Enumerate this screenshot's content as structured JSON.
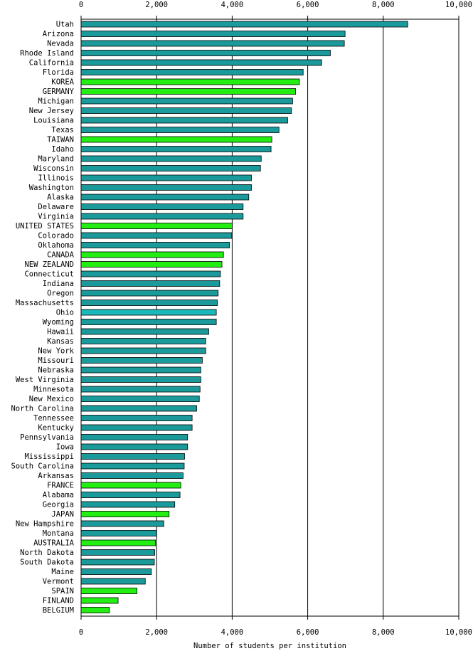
{
  "chart_data": {
    "type": "bar",
    "orientation": "horizontal",
    "xlabel": "Number of students per institution",
    "xlim": [
      0,
      10000
    ],
    "xticks": [
      0,
      2000,
      4000,
      6000,
      8000,
      10000
    ],
    "xtick_labels": [
      "0",
      "2,000",
      "4,000",
      "6,000",
      "8,000",
      "10,000"
    ],
    "grid": "vertical",
    "colors": {
      "us_state": "#1a9a9a",
      "country": "#22ee11",
      "highlight": "#1ab8b8"
    },
    "categories": [
      "Utah",
      "Arizona",
      "Nevada",
      "Rhode Island",
      "California",
      "Florida",
      "KOREA",
      "GERMANY",
      "Michigan",
      "New Jersey",
      "Louisiana",
      "Texas",
      "TAIWAN",
      "Idaho",
      "Maryland",
      "Wisconsin",
      "Illinois",
      "Washington",
      "Alaska",
      "Delaware",
      "Virginia",
      "UNITED STATES",
      "Colorado",
      "Oklahoma",
      "CANADA",
      "NEW ZEALAND",
      "Connecticut",
      "Indiana",
      "Oregon",
      "Massachusetts",
      "Ohio",
      "Wyoming",
      "Hawaii",
      "Kansas",
      "New York",
      "Missouri",
      "Nebraska",
      "West Virginia",
      "Minnesota",
      "New Mexico",
      "North Carolina",
      "Tennessee",
      "Kentucky",
      "Pennsylvania",
      "Iowa",
      "Mississippi",
      "South Carolina",
      "Arkansas",
      "FRANCE",
      "Alabama",
      "Georgia",
      "JAPAN",
      "New Hampshire",
      "Montana",
      "AUSTRALIA",
      "North Dakota",
      "South Dakota",
      "Maine",
      "Vermont",
      "SPAIN",
      "FINLAND",
      "BELGIUM"
    ],
    "values": [
      8650,
      6990,
      6970,
      6600,
      6370,
      5880,
      5780,
      5680,
      5600,
      5570,
      5470,
      5240,
      5050,
      5030,
      4770,
      4750,
      4510,
      4510,
      4440,
      4290,
      4290,
      4000,
      3990,
      3930,
      3770,
      3730,
      3690,
      3670,
      3630,
      3610,
      3580,
      3580,
      3380,
      3300,
      3300,
      3210,
      3170,
      3170,
      3150,
      3130,
      3060,
      2940,
      2940,
      2820,
      2820,
      2740,
      2730,
      2700,
      2640,
      2620,
      2480,
      2330,
      2190,
      2000,
      1970,
      1950,
      1940,
      1860,
      1700,
      1480,
      980,
      750
    ],
    "groups": [
      "s",
      "s",
      "s",
      "s",
      "s",
      "s",
      "c",
      "c",
      "s",
      "s",
      "s",
      "s",
      "c",
      "s",
      "s",
      "s",
      "s",
      "s",
      "s",
      "s",
      "s",
      "c",
      "s",
      "s",
      "c",
      "c",
      "s",
      "s",
      "s",
      "s",
      "h",
      "s",
      "s",
      "s",
      "s",
      "s",
      "s",
      "s",
      "s",
      "s",
      "s",
      "s",
      "s",
      "s",
      "s",
      "s",
      "s",
      "s",
      "c",
      "s",
      "s",
      "c",
      "s",
      "s",
      "c",
      "s",
      "s",
      "s",
      "s",
      "c",
      "c",
      "c"
    ]
  }
}
